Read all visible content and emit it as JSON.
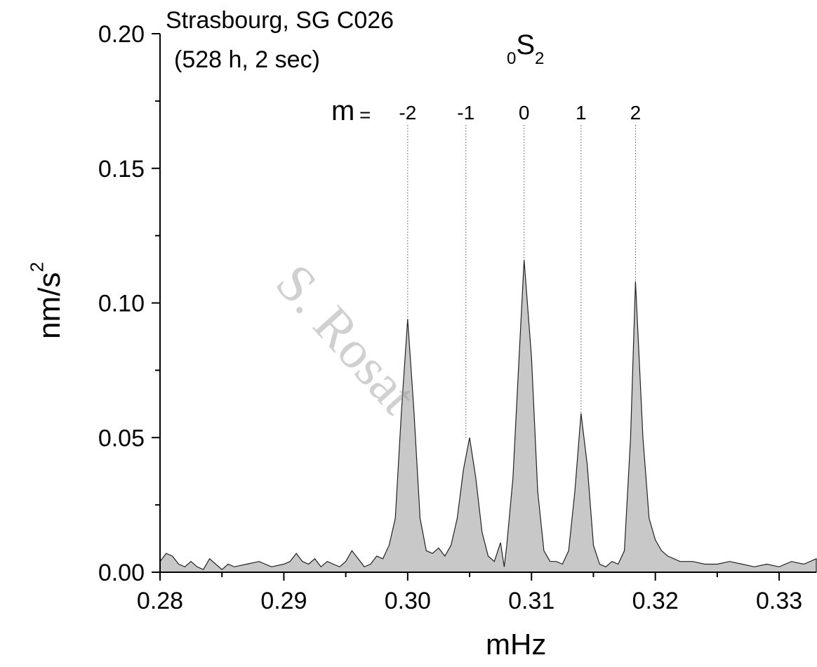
{
  "chart_data": {
    "type": "area",
    "title_lines": [
      "Strasbourg, SG C026",
      "(528 h, 2 sec)"
    ],
    "mode_label": {
      "prefix": "0",
      "letter": "S",
      "suffix": "2"
    },
    "m_label": "m",
    "m_eq": "=",
    "xlabel": "mHz",
    "ylabel": "nm/s",
    "ylabel_sup": "2",
    "xlim": [
      0.28,
      0.333
    ],
    "ylim": [
      0.0,
      0.2
    ],
    "xticks": [
      0.28,
      0.29,
      0.3,
      0.31,
      0.32,
      0.33
    ],
    "xtick_labels": [
      "0.28",
      "0.29",
      "0.30",
      "0.31",
      "0.32",
      "0.33"
    ],
    "yticks": [
      0.0,
      0.05,
      0.1,
      0.15,
      0.2
    ],
    "ytick_labels": [
      "0.00",
      "0.05",
      "0.10",
      "0.15",
      "0.20"
    ],
    "singlets": [
      {
        "m": "-2",
        "freq": 0.3,
        "amp": 0.094
      },
      {
        "m": "-1",
        "freq": 0.3047,
        "amp": 0.05
      },
      {
        "m": "0",
        "freq": 0.3094,
        "amp": 0.116
      },
      {
        "m": "1",
        "freq": 0.314,
        "amp": 0.059
      },
      {
        "m": "2",
        "freq": 0.3184,
        "amp": 0.108
      }
    ],
    "x": [
      0.28,
      0.2805,
      0.281,
      0.2815,
      0.282,
      0.2825,
      0.283,
      0.2835,
      0.284,
      0.2845,
      0.285,
      0.2855,
      0.286,
      0.287,
      0.288,
      0.289,
      0.29,
      0.2905,
      0.291,
      0.2915,
      0.292,
      0.2925,
      0.293,
      0.2935,
      0.294,
      0.2945,
      0.295,
      0.2955,
      0.296,
      0.2965,
      0.297,
      0.2975,
      0.298,
      0.2985,
      0.299,
      0.2995,
      0.3,
      0.3005,
      0.301,
      0.3015,
      0.302,
      0.3025,
      0.303,
      0.3035,
      0.304,
      0.3045,
      0.305,
      0.3055,
      0.306,
      0.3065,
      0.307,
      0.3075,
      0.3078,
      0.308,
      0.3085,
      0.309,
      0.3094,
      0.31,
      0.3105,
      0.311,
      0.3115,
      0.312,
      0.3125,
      0.313,
      0.3135,
      0.314,
      0.3145,
      0.315,
      0.3155,
      0.316,
      0.3165,
      0.317,
      0.3175,
      0.318,
      0.3184,
      0.319,
      0.3195,
      0.32,
      0.3205,
      0.321,
      0.3215,
      0.322,
      0.323,
      0.324,
      0.325,
      0.326,
      0.327,
      0.328,
      0.329,
      0.33,
      0.331,
      0.332,
      0.333
    ],
    "y": [
      0.004,
      0.007,
      0.006,
      0.003,
      0.002,
      0.004,
      0.002,
      0.001,
      0.005,
      0.003,
      0.001,
      0.003,
      0.002,
      0.003,
      0.004,
      0.002,
      0.003,
      0.004,
      0.007,
      0.004,
      0.003,
      0.005,
      0.002,
      0.004,
      0.003,
      0.002,
      0.004,
      0.008,
      0.005,
      0.002,
      0.003,
      0.006,
      0.005,
      0.01,
      0.02,
      0.06,
      0.094,
      0.06,
      0.02,
      0.008,
      0.007,
      0.009,
      0.006,
      0.01,
      0.02,
      0.038,
      0.05,
      0.035,
      0.015,
      0.006,
      0.004,
      0.011,
      0.002,
      0.01,
      0.035,
      0.08,
      0.116,
      0.08,
      0.03,
      0.008,
      0.004,
      0.004,
      0.003,
      0.008,
      0.03,
      0.059,
      0.04,
      0.01,
      0.003,
      0.002,
      0.004,
      0.003,
      0.008,
      0.05,
      0.108,
      0.05,
      0.02,
      0.012,
      0.008,
      0.006,
      0.005,
      0.004,
      0.004,
      0.003,
      0.003,
      0.004,
      0.003,
      0.002,
      0.003,
      0.002,
      0.004,
      0.003,
      0.005
    ]
  },
  "watermark": "S. Rosat"
}
